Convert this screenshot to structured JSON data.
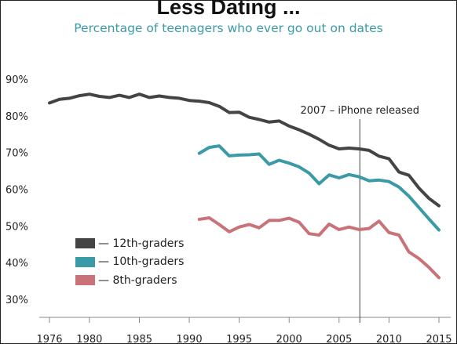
{
  "title": "Less Dating ...",
  "subtitle": "Percentage of teenagers who ever go out on dates",
  "chart_data": {
    "type": "line",
    "title": "Less Dating ...",
    "subtitle": "Percentage of teenagers who ever go out on dates",
    "xlabel": "",
    "ylabel": "",
    "xlim": [
      1975,
      2016
    ],
    "ylim": [
      29,
      93
    ],
    "x_ticks": [
      1976,
      1980,
      1985,
      1990,
      1995,
      2000,
      2005,
      2010,
      2015
    ],
    "x_tick_labels": [
      "1976",
      "1980",
      "1985",
      "1990",
      "1995",
      "2000",
      "2005",
      "2010",
      "2015"
    ],
    "y_ticks": [
      30,
      40,
      50,
      60,
      70,
      80,
      90
    ],
    "y_tick_labels": [
      "30%",
      "40%",
      "50%",
      "60%",
      "70%",
      "80%",
      "90%"
    ],
    "grid": false,
    "legend_position": "bottom-left",
    "annotation": {
      "text": "2007 – iPhone released",
      "x": 2007
    },
    "series": [
      {
        "name": "— 12th-graders",
        "color": "#444444",
        "x": [
          1976,
          1977,
          1978,
          1979,
          1980,
          1981,
          1982,
          1983,
          1984,
          1985,
          1986,
          1987,
          1988,
          1989,
          1990,
          1991,
          1992,
          1993,
          1994,
          1995,
          1996,
          1997,
          1998,
          1999,
          2000,
          2001,
          2002,
          2003,
          2004,
          2005,
          2006,
          2007,
          2008,
          2009,
          2010,
          2011,
          2012,
          2013,
          2014,
          2015
        ],
        "values": [
          83.5,
          84.5,
          84.8,
          85.5,
          85.9,
          85.3,
          85.0,
          85.6,
          85.0,
          85.9,
          85.0,
          85.4,
          85.0,
          84.8,
          84.2,
          84.0,
          83.6,
          82.6,
          80.9,
          81.0,
          79.6,
          79.0,
          78.3,
          78.6,
          77.2,
          76.2,
          75.0,
          73.6,
          72.0,
          71.0,
          71.2,
          71.0,
          70.6,
          69.0,
          68.3,
          64.7,
          63.8,
          60.3,
          57.5,
          55.5
        ]
      },
      {
        "name": "— 10th-graders",
        "color": "#3a9aa8",
        "x": [
          1991,
          1992,
          1993,
          1994,
          1995,
          1996,
          1997,
          1998,
          1999,
          2000,
          2001,
          2002,
          2003,
          2004,
          2005,
          2006,
          2007,
          2008,
          2009,
          2010,
          2011,
          2012,
          2013,
          2014,
          2015
        ],
        "values": [
          69.8,
          71.4,
          71.8,
          69.1,
          69.3,
          69.4,
          69.6,
          66.8,
          67.9,
          67.1,
          66.1,
          64.4,
          61.5,
          63.9,
          63.1,
          64.0,
          63.4,
          62.3,
          62.5,
          62.1,
          60.6,
          58.1,
          55.0,
          51.9,
          48.9
        ]
      },
      {
        "name": "— 8th-graders",
        "color": "#c97277",
        "x": [
          1991,
          1992,
          1993,
          1994,
          1995,
          1996,
          1997,
          1998,
          1999,
          2000,
          2001,
          2002,
          2003,
          2004,
          2005,
          2006,
          2007,
          2008,
          2009,
          2010,
          2011,
          2012,
          2013,
          2014,
          2015
        ],
        "values": [
          51.8,
          52.2,
          50.4,
          48.4,
          49.7,
          50.4,
          49.5,
          51.5,
          51.5,
          52.1,
          51.0,
          47.9,
          47.5,
          50.5,
          49.0,
          49.7,
          49.0,
          49.3,
          51.3,
          48.2,
          47.5,
          42.9,
          41.1,
          38.7,
          35.9
        ]
      }
    ]
  }
}
